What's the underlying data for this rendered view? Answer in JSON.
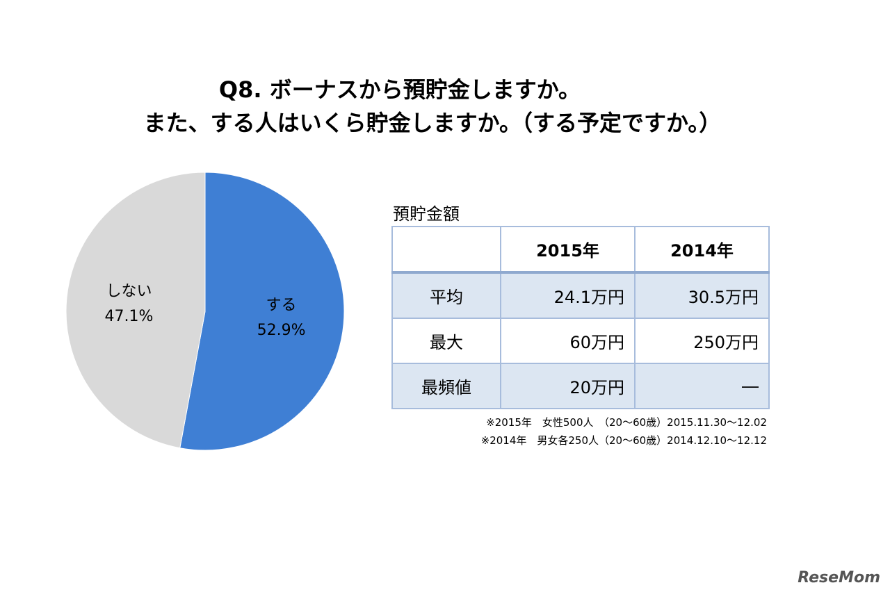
{
  "chart_data": {
    "type": "pie",
    "title": [
      "Q8. ボーナスから預貯金しますか。",
      "また、する人はいくら貯金しますか。（する予定ですか。）"
    ],
    "categories": [
      "する",
      "しない"
    ],
    "values": [
      52.9,
      47.1
    ],
    "value_labels": [
      "52.9%",
      "47.1%"
    ],
    "colors": [
      "#3f7fd4",
      "#d9d9d9"
    ]
  },
  "table": {
    "title": "預貯金額",
    "header": [
      "2015年",
      "2014年"
    ],
    "rows": [
      [
        "平均",
        "24.1万円",
        "30.5万円"
      ],
      [
        "最大",
        "60万円",
        "250万円"
      ],
      [
        "最頻値",
        "20万円",
        "―"
      ]
    ],
    "notes": [
      "※2015年　女性500人　（20～60歳）2015.11.30～12.02",
      "※2014年　男女各250人（20～60歳）2014.12.10～12.12"
    ]
  },
  "watermark": "ReseMom"
}
